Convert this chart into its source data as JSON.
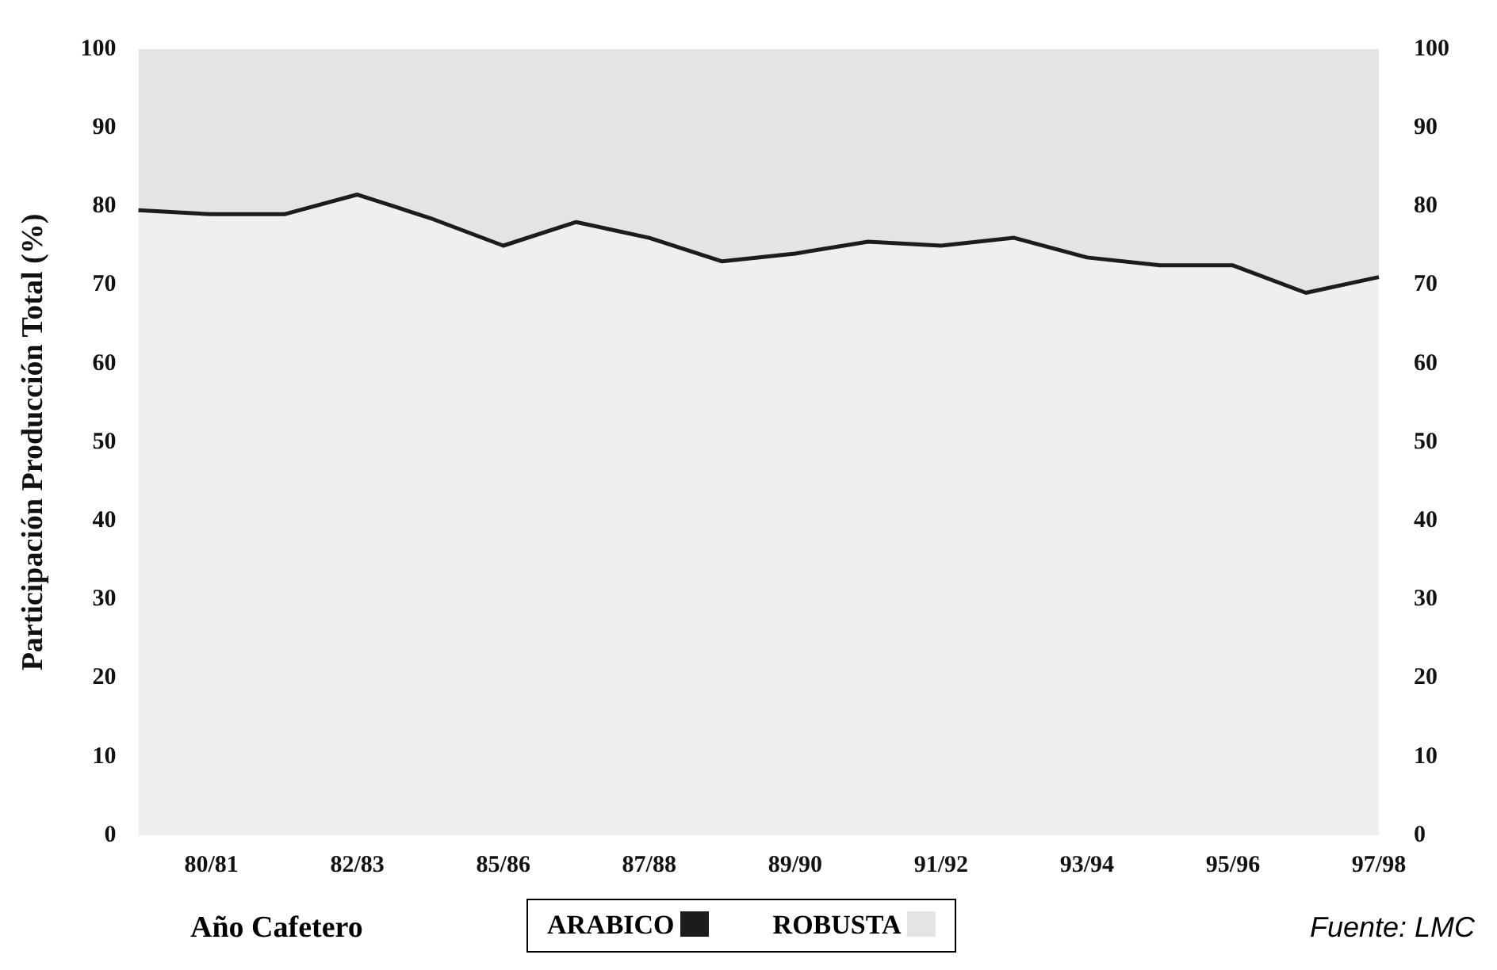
{
  "chart_data": {
    "type": "area",
    "stacked": true,
    "ylabel": "Participación Producción Total (%)",
    "xlabel": "Año Cafetero",
    "categories": [
      null,
      "80/81",
      null,
      "82/83",
      null,
      "85/86",
      null,
      "87/88",
      null,
      "89/90",
      null,
      "91/92",
      null,
      "93/94",
      null,
      "95/96",
      null,
      "97/98"
    ],
    "series": [
      {
        "name": "ARABICO",
        "color": "#1c1c1c",
        "values": [
          79.5,
          79,
          79,
          81.5,
          78.5,
          75,
          78,
          76,
          73,
          74,
          75.5,
          75,
          76,
          73.5,
          72.5,
          72.5,
          69,
          71
        ]
      },
      {
        "name": "ROBUSTA",
        "color": "#e4e4e4",
        "values": [
          20.5,
          21,
          21,
          18.5,
          21.5,
          25,
          22,
          24,
          27,
          26,
          24.5,
          25,
          24,
          26.5,
          27.5,
          27.5,
          31,
          29
        ]
      }
    ],
    "ylim": [
      0,
      100
    ],
    "yticks": [
      0,
      10,
      20,
      30,
      40,
      50,
      60,
      70,
      80,
      90,
      100
    ],
    "y2lim": [
      0,
      100
    ],
    "y2ticks": [
      0,
      10,
      20,
      30,
      40,
      50,
      60,
      70,
      80,
      90,
      100
    ],
    "grid": false,
    "legend": "bottom",
    "marker": "none",
    "line_style": "solid",
    "annotations": [
      "Fuente: LMC"
    ]
  }
}
